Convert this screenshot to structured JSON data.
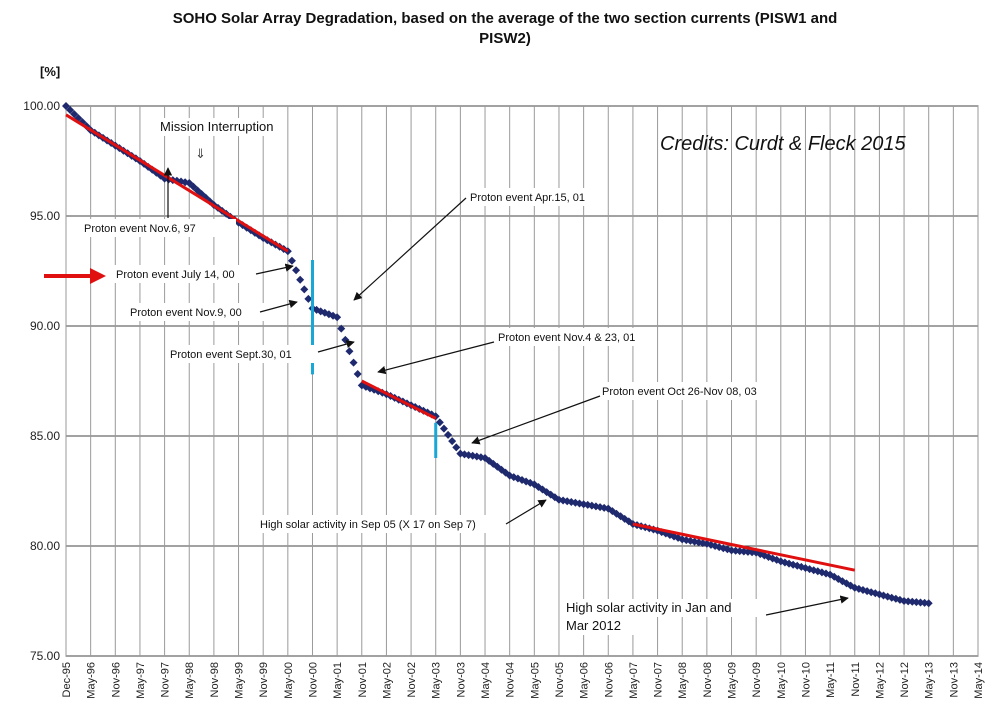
{
  "chart_data": {
    "type": "scatter",
    "title_line1": "SOHO Solar Array Degradation, based on the average of the two section currents (PISW1 and",
    "title_line2": "PISW2)",
    "ylabel": "[%]",
    "credits": "Credits: Curdt & Fleck 2015",
    "ylim": [
      75,
      100
    ],
    "yticks": [
      "75.00",
      "80.00",
      "85.00",
      "90.00",
      "95.00",
      "100.00"
    ],
    "x_labels": [
      "Dec-95",
      "May-96",
      "Nov-96",
      "May-97",
      "Nov-97",
      "May-98",
      "Nov-98",
      "May-99",
      "Nov-99",
      "May-00",
      "Nov-00",
      "May-01",
      "Nov-01",
      "May-02",
      "Nov-02",
      "May-03",
      "Nov-03",
      "May-04",
      "Nov-04",
      "May-05",
      "Nov-05",
      "May-06",
      "Nov-06",
      "May-07",
      "Nov-07",
      "May-08",
      "Nov-08",
      "May-09",
      "Nov-09",
      "May-10",
      "Nov-10",
      "May-11",
      "Nov-11",
      "May-12",
      "Nov-12",
      "May-13",
      "Nov-13",
      "May-14"
    ],
    "grid": true,
    "series": [
      {
        "points": [
          [
            "Dec-95",
            100.0
          ],
          [
            "May-96",
            98.9
          ],
          [
            "Nov-96",
            98.2
          ],
          [
            "May-97",
            97.5
          ],
          [
            "Nov-97",
            96.7
          ],
          [
            "May-98",
            96.5
          ],
          [
            "Nov-98",
            95.5
          ],
          [
            "May-99",
            94.7
          ],
          [
            "Nov-99",
            94.0
          ],
          [
            "May-00",
            93.4
          ],
          [
            "Nov-00",
            90.8
          ],
          [
            "May-01",
            90.4
          ],
          [
            "Nov-01",
            87.3
          ],
          [
            "May-02",
            86.9
          ],
          [
            "Nov-02",
            86.4
          ],
          [
            "May-03",
            85.9
          ],
          [
            "Nov-03",
            84.2
          ],
          [
            "May-04",
            84.0
          ],
          [
            "Nov-04",
            83.2
          ],
          [
            "May-05",
            82.8
          ],
          [
            "Nov-05",
            82.1
          ],
          [
            "May-06",
            81.9
          ],
          [
            "Nov-06",
            81.7
          ],
          [
            "May-07",
            81.0
          ],
          [
            "Nov-07",
            80.7
          ],
          [
            "May-08",
            80.3
          ],
          [
            "Nov-08",
            80.1
          ],
          [
            "May-09",
            79.8
          ],
          [
            "Nov-09",
            79.7
          ],
          [
            "May-10",
            79.3
          ],
          [
            "Nov-10",
            79.0
          ],
          [
            "May-11",
            78.7
          ],
          [
            "Nov-11",
            78.1
          ],
          [
            "May-12",
            77.8
          ],
          [
            "Nov-12",
            77.5
          ],
          [
            "May-13",
            77.4
          ]
        ]
      }
    ],
    "trend_lines": [
      {
        "from": [
          "Dec-95",
          99.6
        ],
        "to": [
          "May-00",
          93.4
        ]
      },
      {
        "from": [
          "Nov-01",
          87.5
        ],
        "to": [
          "May-03",
          85.8
        ]
      },
      {
        "from": [
          "May-07",
          81.0
        ],
        "to": [
          "Nov-11",
          78.9
        ]
      }
    ],
    "event_markers": [
      {
        "x": "Nov-00",
        "y1": 87.8,
        "y2": 93.0
      },
      {
        "x": "May-03",
        "y1": 84.0,
        "y2": 85.6
      }
    ],
    "annotations": [
      "Mission Interruption",
      "Proton event  Nov.6,  97",
      "Proton event  July 14, 00",
      "Proton event  Nov.9,  00",
      "Proton event  Sept.30,  01",
      "Proton event  Apr.15,  01",
      "Proton event  Nov.4  & 23,  01",
      "Proton event  Oct 26-Nov 08,  03",
      "High solar activity in Sep 05 (X 17 on Sep 7)",
      "High solar activity in Jan and",
      "Mar 2012"
    ],
    "colors": {
      "points": "#1f2a6e",
      "trend": "#e01010",
      "marker": "#19a7d6",
      "arrow_highlight": "#e01010"
    }
  }
}
